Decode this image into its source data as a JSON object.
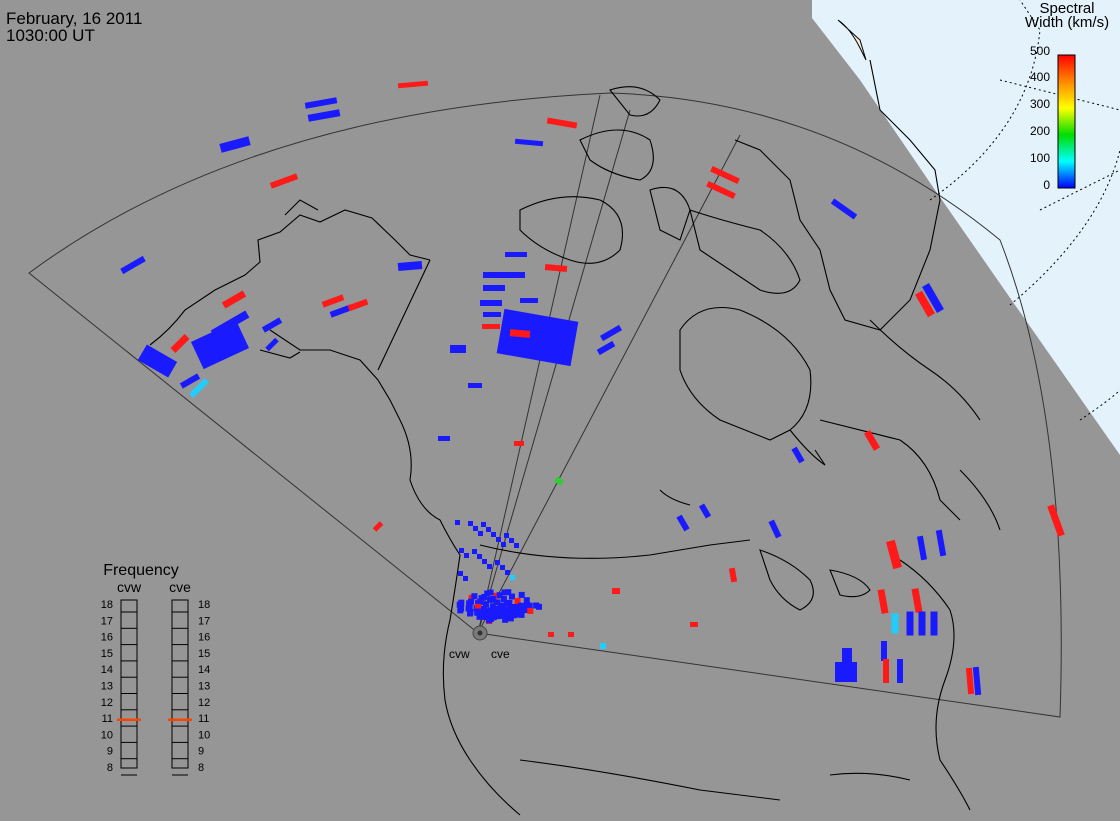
{
  "header": {
    "date": "February, 16 2011",
    "time": "1030:00 UT"
  },
  "colorbar": {
    "title_line1": "Spectral",
    "title_line2": "Width (km/s)",
    "ticks": [
      "500",
      "400",
      "300",
      "200",
      "100",
      "0"
    ],
    "colors": [
      "#ff0000",
      "#ff8800",
      "#ffff00",
      "#00dd00",
      "#00ffff",
      "#0000ff"
    ]
  },
  "frequency": {
    "title": "Frequency",
    "radar_west": "cvw",
    "radar_east": "cve",
    "ticks": [
      "18",
      "17",
      "16",
      "15",
      "14",
      "13",
      "12",
      "11",
      "10",
      "9",
      "8"
    ],
    "cvw_value": 10.9,
    "cve_value": 10.9,
    "marker_color": "#ff4400"
  },
  "radars": {
    "west_label": "cvw",
    "east_label": "cve"
  },
  "colors": {
    "background": "#969696",
    "polar_cap": "#ddeeff",
    "low_width": "#1a1aff",
    "high_width": "#ff1a1a",
    "mid_width": "#22ccff",
    "green": "#33cc33"
  }
}
